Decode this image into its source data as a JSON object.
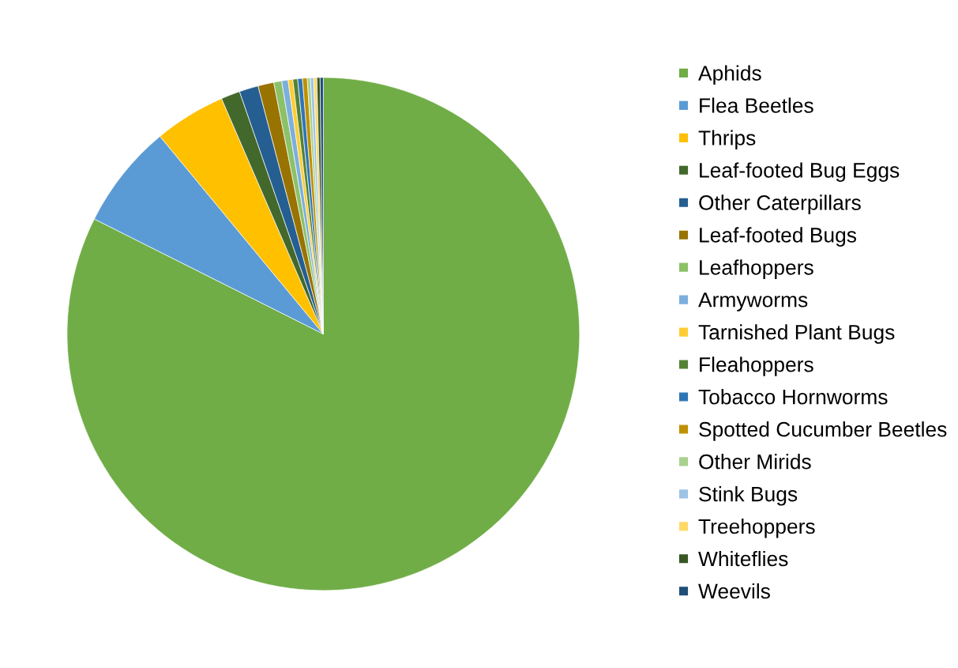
{
  "chart_data": {
    "type": "pie",
    "categories": [
      "Aphids",
      "Flea Beetles",
      "Thrips",
      "Leaf-footed Bug Eggs",
      "Other Caterpillars",
      "Leaf-footed Bugs",
      "Leafhoppers",
      "Armyworms",
      "Tarnished Plant Bugs",
      "Fleahoppers",
      "Tobacco Hornworms",
      "Spotted Cucumber Beetles",
      "Other Mirids",
      "Stink Bugs",
      "Treehoppers",
      "Whiteflies",
      "Weevils"
    ],
    "values": [
      82.4,
      6.6,
      4.5,
      1.2,
      1.2,
      1.0,
      0.5,
      0.4,
      0.3,
      0.3,
      0.3,
      0.3,
      0.2,
      0.2,
      0.2,
      0.2,
      0.2
    ],
    "colors": [
      "#70ad47",
      "#5b9bd5",
      "#ffc000",
      "#43682b",
      "#255e91",
      "#997300",
      "#8cc168",
      "#7cafdd",
      "#ffcd33",
      "#548235",
      "#2e75b6",
      "#bf9000",
      "#a9d18e",
      "#9dc3e6",
      "#ffd966",
      "#375623",
      "#1f4e79"
    ],
    "legend": "right"
  }
}
